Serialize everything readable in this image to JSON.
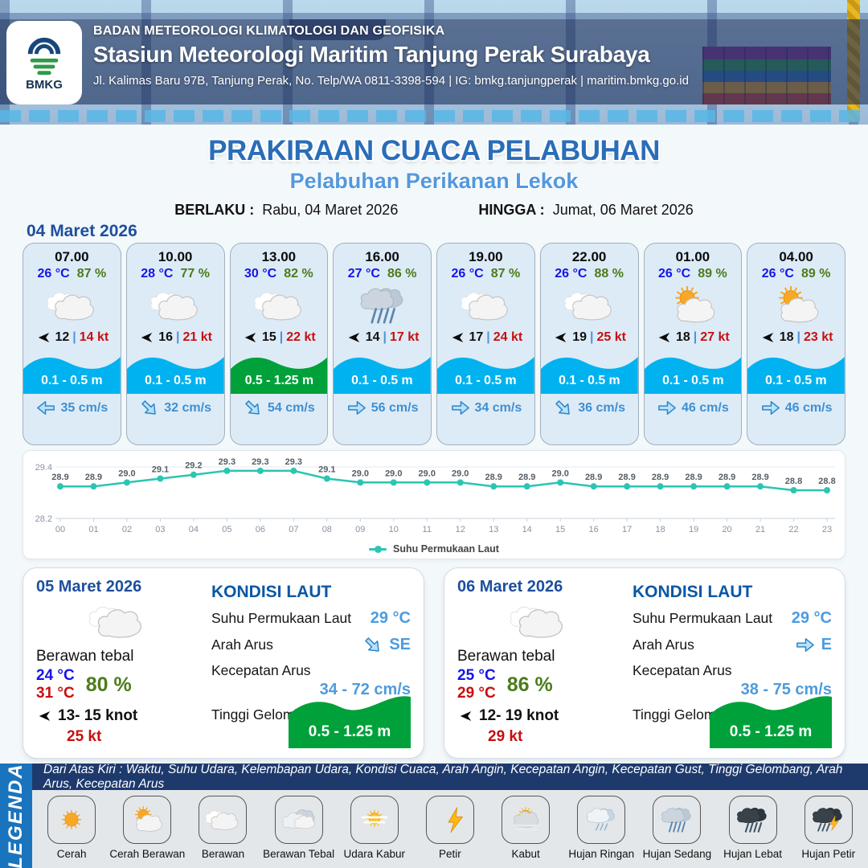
{
  "header": {
    "logo": "BMKG",
    "org": "BADAN METEOROLOGI KLIMATOLOGI DAN GEOFISIKA",
    "station": "Stasiun Meteorologi Maritim Tanjung Perak Surabaya",
    "address": "Jl. Kalimas Baru 97B, Tanjung Perak, No. Telp/WA 0811-3398-594 | IG: bmkg.tanjungperak | maritim.bmkg.go.id"
  },
  "title": {
    "main": "PRAKIRAAN CUACA PELABUHAN",
    "sub": "Pelabuhan Perikanan Lekok",
    "berlaku_label": "BERLAKU :",
    "berlaku_value": "Rabu, 04 Maret 2026",
    "hingga_label": "HINGGA :",
    "hingga_value": "Jumat, 06 Maret 2026"
  },
  "forecast": {
    "date": "04 Maret 2026",
    "cards": [
      {
        "time": "07.00",
        "temp": "26 °C",
        "humidity": "87 %",
        "icon": "berawan",
        "wind": "12",
        "gust": "14 kt",
        "wave": "0.1 - 0.5 m",
        "wave_color": "#00b2f0",
        "current": "35 cm/s",
        "current_dir": "W"
      },
      {
        "time": "10.00",
        "temp": "28 °C",
        "humidity": "77 %",
        "icon": "berawan",
        "wind": "16",
        "gust": "21 kt",
        "wave": "0.1 - 0.5 m",
        "wave_color": "#00b2f0",
        "current": "32 cm/s",
        "current_dir": "SE"
      },
      {
        "time": "13.00",
        "temp": "30 °C",
        "humidity": "82 %",
        "icon": "berawan",
        "wind": "15",
        "gust": "22 kt",
        "wave": "0.5 - 1.25 m",
        "wave_color": "#00a13a",
        "current": "54 cm/s",
        "current_dir": "SE"
      },
      {
        "time": "16.00",
        "temp": "27 °C",
        "humidity": "86 %",
        "icon": "hujan-sedang",
        "wind": "14",
        "gust": "17 kt",
        "wave": "0.1 - 0.5 m",
        "wave_color": "#00b2f0",
        "current": "56 cm/s",
        "current_dir": "E"
      },
      {
        "time": "19.00",
        "temp": "26 °C",
        "humidity": "87 %",
        "icon": "berawan",
        "wind": "17",
        "gust": "24 kt",
        "wave": "0.1 - 0.5 m",
        "wave_color": "#00b2f0",
        "current": "34 cm/s",
        "current_dir": "E"
      },
      {
        "time": "22.00",
        "temp": "26 °C",
        "humidity": "88 %",
        "icon": "berawan",
        "wind": "19",
        "gust": "25 kt",
        "wave": "0.1 - 0.5 m",
        "wave_color": "#00b2f0",
        "current": "36 cm/s",
        "current_dir": "SE"
      },
      {
        "time": "01.00",
        "temp": "26 °C",
        "humidity": "89 %",
        "icon": "cerah-berawan",
        "wind": "18",
        "gust": "27 kt",
        "wave": "0.1 - 0.5 m",
        "wave_color": "#00b2f0",
        "current": "46 cm/s",
        "current_dir": "E"
      },
      {
        "time": "04.00",
        "temp": "26 °C",
        "humidity": "89 %",
        "icon": "cerah-berawan",
        "wind": "18",
        "gust": "23 kt",
        "wave": "0.1 - 0.5 m",
        "wave_color": "#00b2f0",
        "current": "46 cm/s",
        "current_dir": "E"
      }
    ]
  },
  "chart_data": {
    "type": "line",
    "series_name": "Suhu Permukaan Laut",
    "x": [
      "00",
      "01",
      "02",
      "03",
      "04",
      "05",
      "06",
      "07",
      "08",
      "09",
      "10",
      "11",
      "12",
      "13",
      "14",
      "15",
      "16",
      "17",
      "18",
      "19",
      "20",
      "21",
      "22",
      "23"
    ],
    "values": [
      28.9,
      28.9,
      29.0,
      29.1,
      29.2,
      29.3,
      29.3,
      29.3,
      29.1,
      29.0,
      29.0,
      29.0,
      29.0,
      28.9,
      28.9,
      29.0,
      28.9,
      28.9,
      28.9,
      28.9,
      28.9,
      28.9,
      28.8,
      28.8
    ],
    "ylim": [
      28.2,
      29.4
    ],
    "line_color": "#2cc5b2",
    "legend_position": "bottom",
    "grid": false
  },
  "kondisi": {
    "heading": "KONDISI LAUT",
    "sst_label": "Suhu Permukaan Laut",
    "dir_label": "Arah Arus",
    "speed_label": "Kecepatan Arus",
    "wave_label": "Tinggi Gelombang"
  },
  "days": [
    {
      "date": "05 Maret 2026",
      "condition": "Berawan tebal",
      "icon": "berawan",
      "temp_min": "24 °C",
      "temp_max": "31 °C",
      "humidity": "80 %",
      "wind": "13- 15 knot",
      "gust": "25 kt",
      "sea": {
        "sst": "29 °C",
        "dir": "SE",
        "speed": "34 - 72 cm/s",
        "wave": "0.5 - 1.25 m",
        "wave_color": "#00a13a"
      }
    },
    {
      "date": "06 Maret 2026",
      "condition": "Berawan tebal",
      "icon": "berawan",
      "temp_min": "25 °C",
      "temp_max": "29 °C",
      "humidity": "86 %",
      "wind": "12- 19 knot",
      "gust": "29 kt",
      "sea": {
        "sst": "29 °C",
        "dir": "E",
        "speed": "38 - 75 cm/s",
        "wave": "0.5 - 1.25 m",
        "wave_color": "#00a13a"
      }
    }
  ],
  "legend": {
    "banner": "LEGENDA",
    "note": "Dari Atas Kiri : Waktu, Suhu Udara, Kelembapan Udara, Kondisi Cuaca, Arah Angin, Kecepatan Angin, Kecepatan Gust, Tinggi Gelombang, Arah Arus, Kecepatan Arus",
    "items": [
      {
        "label": "Cerah",
        "icon": "cerah"
      },
      {
        "label": "Cerah Berawan",
        "icon": "cerah-berawan"
      },
      {
        "label": "Berawan",
        "icon": "berawan"
      },
      {
        "label": "Berawan Tebal",
        "icon": "berawan-tebal"
      },
      {
        "label": "Udara Kabur",
        "icon": "udara-kabur"
      },
      {
        "label": "Petir",
        "icon": "petir"
      },
      {
        "label": "Kabut",
        "icon": "kabut"
      },
      {
        "label": "Hujan Ringan",
        "icon": "hujan-ringan"
      },
      {
        "label": "Hujan Sedang",
        "icon": "hujan-sedang"
      },
      {
        "label": "Hujan Lebat",
        "icon": "hujan-lebat"
      },
      {
        "label": "Hujan Petir",
        "icon": "hujan-petir"
      }
    ]
  },
  "colors": {
    "title_blue": "#2a6db8",
    "subtitle_blue": "#5398dd",
    "date_navy": "#1d4f9e",
    "temp_blue": "#1414e8",
    "humidity_green": "#4c7c1b",
    "gust_red": "#c80f0f",
    "current_blue": "#3f8fd2",
    "wave_cyan": "#00b2f0",
    "wave_green": "#00a13a",
    "chart_teal": "#2cc5b2"
  }
}
